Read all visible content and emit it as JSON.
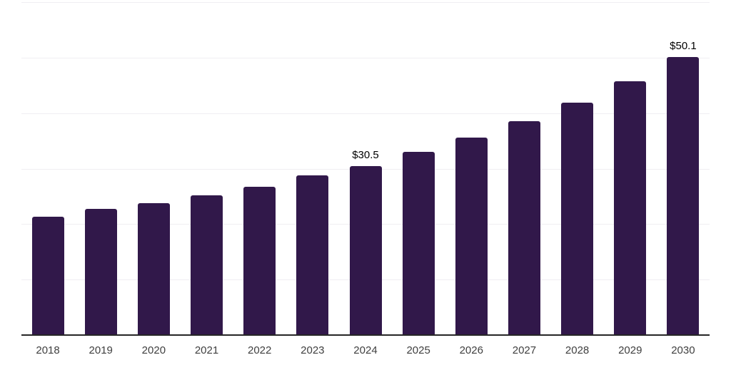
{
  "chart_data": {
    "type": "bar",
    "title": "",
    "xlabel": "",
    "ylabel": "",
    "categories": [
      "2018",
      "2019",
      "2020",
      "2021",
      "2022",
      "2023",
      "2024",
      "2025",
      "2026",
      "2027",
      "2028",
      "2029",
      "2030"
    ],
    "values": [
      21.3,
      22.7,
      23.8,
      25.2,
      26.7,
      28.8,
      30.5,
      33.0,
      35.6,
      38.5,
      41.9,
      45.8,
      50.1
    ],
    "data_labels": [
      "",
      "",
      "",
      "",
      "",
      "",
      "$30.5",
      "",
      "",
      "",
      "",
      "",
      "$50.1"
    ],
    "ylim": [
      0,
      60
    ],
    "gridline_step": 10,
    "grid": true,
    "y_tick_labels_visible": false,
    "legend_position": "none",
    "colors": {
      "bar": "#31184a",
      "grid": "#f0eef2",
      "axis_line": "#262626",
      "x_tick_label": "#3f3f3f",
      "data_label": "#000000",
      "background": "#ffffff"
    }
  }
}
